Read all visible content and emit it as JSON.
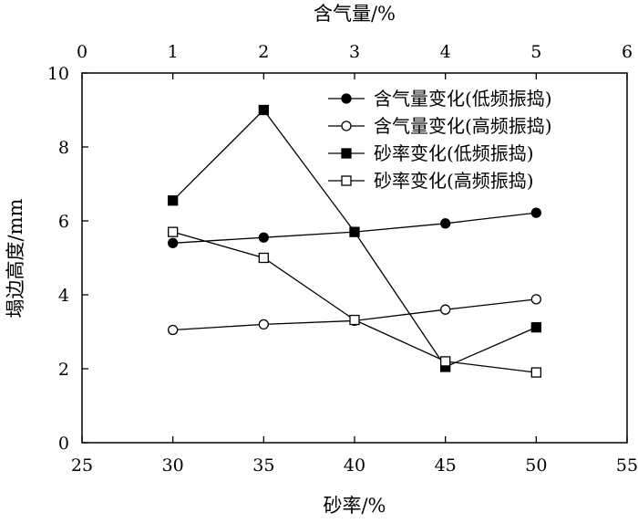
{
  "chart_data": {
    "type": "line",
    "xlabel_bottom": "砂率/%",
    "xlabel_top": "含气量/%",
    "ylabel": "塌边高度/mm",
    "x_bottom_range": [
      25,
      55
    ],
    "x_bottom_ticks": [
      "25",
      "30",
      "35",
      "40",
      "45",
      "50",
      "55"
    ],
    "x_top_range": [
      0,
      6
    ],
    "x_top_ticks": [
      "0",
      "1",
      "2",
      "3",
      "4",
      "5",
      "6"
    ],
    "y_range": [
      0,
      10
    ],
    "y_ticks": [
      "0",
      "2",
      "4",
      "6",
      "8",
      "10"
    ],
    "legend_position": "top-right",
    "grid": false,
    "series": [
      {
        "name": "含气量变化(低频振捣)",
        "marker": "filled-circle",
        "axis": "top",
        "x": [
          1,
          2,
          3,
          4,
          5
        ],
        "y": [
          5.4,
          5.55,
          5.7,
          5.93,
          6.22
        ]
      },
      {
        "name": "含气量变化(高频振捣)",
        "marker": "open-circle",
        "axis": "top",
        "x": [
          1,
          2,
          3,
          4,
          5
        ],
        "y": [
          3.05,
          3.2,
          3.3,
          3.6,
          3.88
        ]
      },
      {
        "name": "砂率变化(低频振捣)",
        "marker": "filled-square",
        "axis": "bottom",
        "x": [
          30,
          35,
          40,
          45,
          50
        ],
        "y": [
          6.55,
          9.0,
          5.7,
          2.05,
          3.12
        ]
      },
      {
        "name": "砂率变化(高频振捣)",
        "marker": "open-square",
        "axis": "bottom",
        "x": [
          30,
          35,
          40,
          45,
          50
        ],
        "y": [
          5.7,
          5.0,
          3.32,
          2.2,
          1.9
        ]
      }
    ]
  }
}
